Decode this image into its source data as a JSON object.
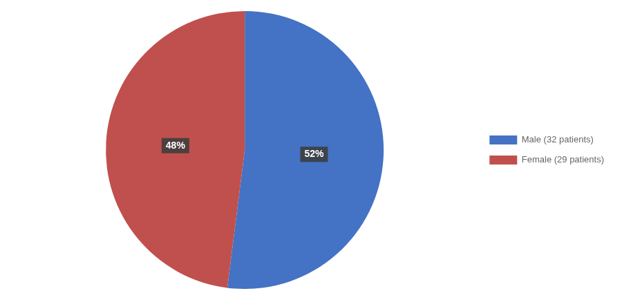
{
  "chart_data": {
    "type": "pie",
    "categories": [
      "Male (32 patients)",
      "Female (29 patients)"
    ],
    "values": [
      52,
      48
    ],
    "value_labels": [
      "52%",
      "48%"
    ],
    "colors": [
      "#4472C4",
      "#C0504D"
    ],
    "data_labels": true,
    "legend": "right"
  }
}
